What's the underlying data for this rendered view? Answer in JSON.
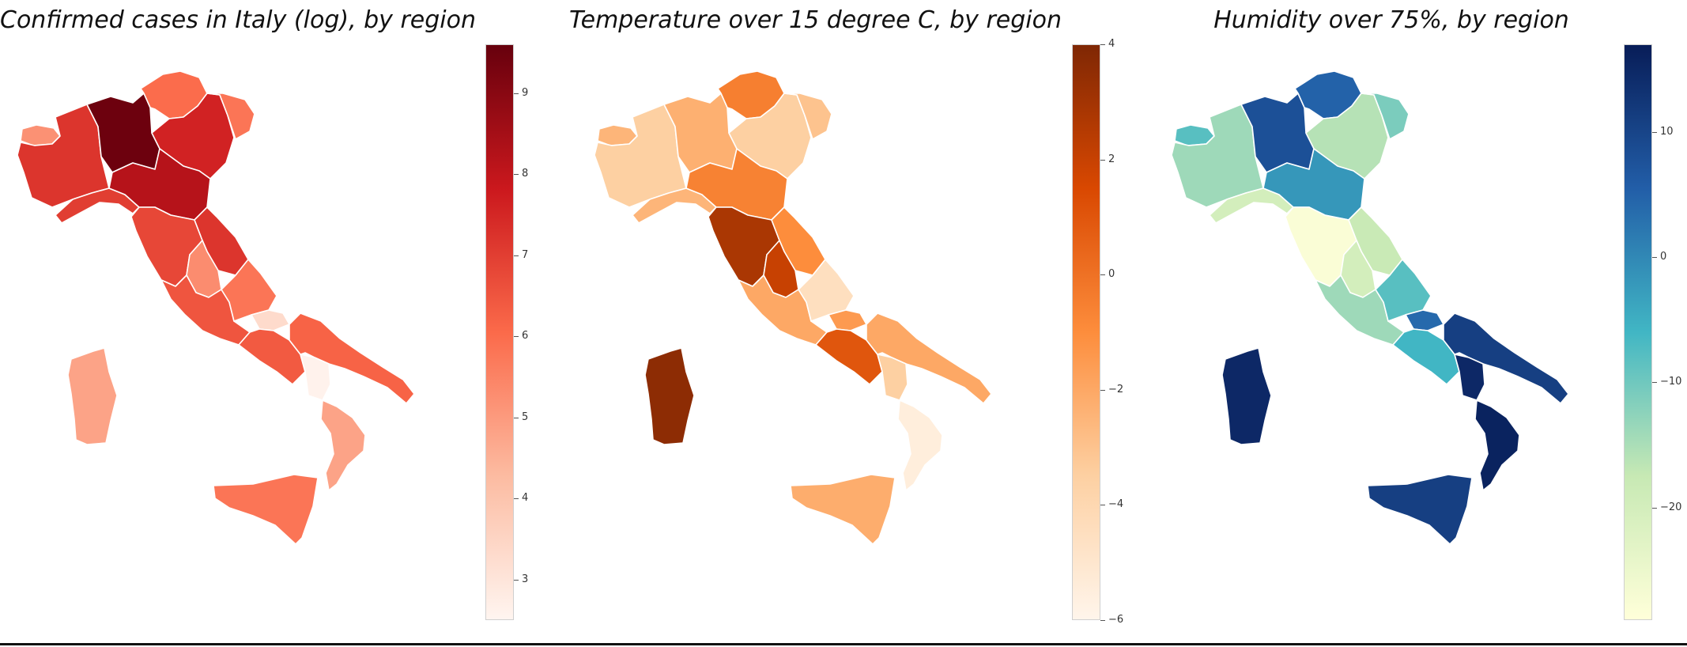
{
  "panels": [
    {
      "id": "cases",
      "title": "Confirmed cases in Italy (log), by region",
      "scale": {
        "min": 2.5,
        "max": 9.6,
        "ticks": [
          3,
          4,
          5,
          6,
          7,
          8,
          9
        ],
        "colors": [
          "#fff5f0",
          "#fcbba1",
          "#fb6a4a",
          "#cb181d",
          "#67000d"
        ]
      },
      "regions": {
        "valle-d-aosta": 5.2,
        "piemonte": 7.2,
        "liguria": 7.0,
        "lombardia": 9.5,
        "trentino": 6.0,
        "veneto": 7.6,
        "friuli": 5.8,
        "emilia-romagna": 8.2,
        "toscana": 6.8,
        "marche": 7.2,
        "umbria": 5.3,
        "lazio": 6.5,
        "abruzzo": 5.8,
        "molise": 3.3,
        "campania": 6.4,
        "puglia": 6.2,
        "basilicata": 2.6,
        "calabria": 4.8,
        "sicilia": 5.8,
        "sardegna": 4.8
      }
    },
    {
      "id": "temperature",
      "title": "Temperature over 15 degree C, by region",
      "scale": {
        "min": -6,
        "max": 4,
        "ticks": [
          -6,
          -4,
          -2,
          0,
          2,
          4
        ],
        "colors": [
          "#fff5eb",
          "#fdd0a2",
          "#fd8d3c",
          "#d94801",
          "#7f2704"
        ]
      },
      "regions": {
        "valle-d-aosta": -2.5,
        "piemonte": -3.5,
        "liguria": -2.5,
        "lombardia": -2.3,
        "trentino": -0.5,
        "veneto": -3.5,
        "friuli": -3.0,
        "emilia-romagna": -0.6,
        "toscana": 2.8,
        "marche": -1.0,
        "umbria": 2.0,
        "lazio": -2.0,
        "abruzzo": -4.5,
        "molise": -1.5,
        "campania": 1.0,
        "puglia": -2.0,
        "basilicata": -3.5,
        "calabria": -5.5,
        "sicilia": -2.2,
        "sardegna": 3.6
      }
    },
    {
      "id": "humidity",
      "title": "Humidity over 75%, by region",
      "scale": {
        "min": -29,
        "max": 17,
        "ticks": [
          -20,
          -10,
          0,
          10
        ],
        "colors": [
          "#ffffd9",
          "#c7e9b4",
          "#41b6c4",
          "#225ea8",
          "#081d58"
        ]
      },
      "regions": {
        "valle-d-aosta": -8,
        "piemonte": -14,
        "liguria": -20,
        "lombardia": 8,
        "trentino": 5,
        "veneto": -16,
        "friuli": -11,
        "emilia-romagna": -2,
        "toscana": -28,
        "marche": -18,
        "umbria": -20,
        "lazio": -14,
        "abruzzo": -8,
        "molise": 4,
        "campania": -6,
        "puglia": 11,
        "basilicata": 15,
        "calabria": 16,
        "sicilia": 11,
        "sardegna": 15
      }
    }
  ]
}
